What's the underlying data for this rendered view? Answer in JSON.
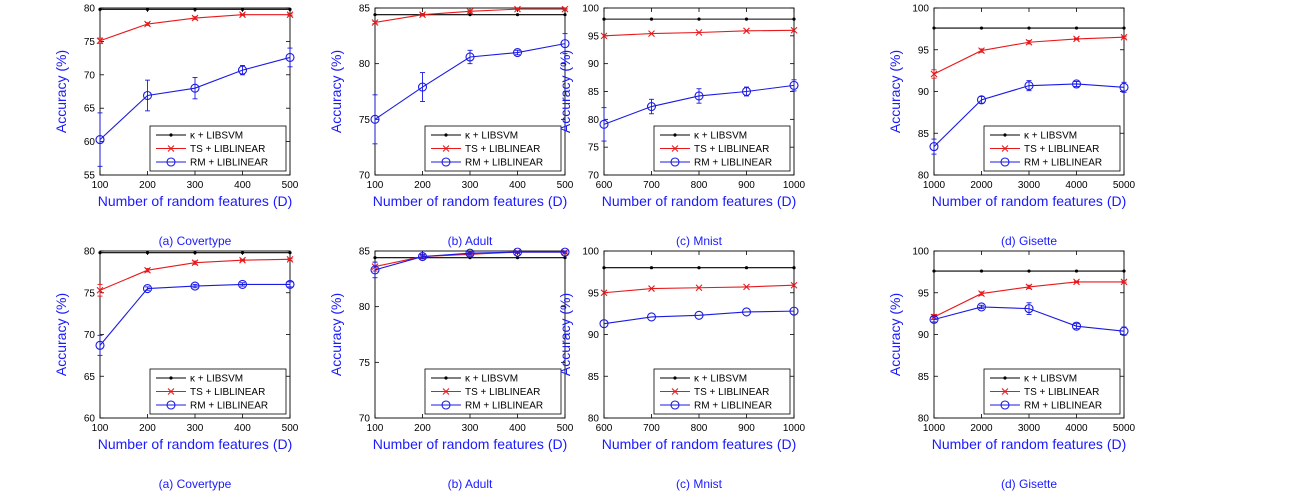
{
  "colors": {
    "axis_label": "#1a1aff",
    "caption": "#1a1aff",
    "kernel": "#000000",
    "ts": "#e8191c",
    "rm": "#1a1ae6"
  },
  "chart_data": [
    {
      "type": "line",
      "caption": "(a) Covertype",
      "xlabel": "Number of random features (D)",
      "ylabel": "Accuracy (%)",
      "xlim": [
        100,
        500
      ],
      "ylim": [
        55,
        80
      ],
      "xticks": [
        100,
        200,
        300,
        400,
        500
      ],
      "yticks": [
        55,
        60,
        65,
        70,
        75,
        80
      ],
      "x": [
        100,
        200,
        300,
        400,
        500
      ],
      "legend": "bottom-right",
      "grid": false,
      "series": [
        {
          "name": "κ + LIBSVM",
          "marker": "dot",
          "values": [
            79.8,
            79.8,
            79.8,
            79.8,
            79.8
          ]
        },
        {
          "name": "TS + LIBLINEAR",
          "marker": "x",
          "values": [
            75.1,
            77.6,
            78.5,
            79.0,
            79.0
          ],
          "errors": [
            0.4,
            0.2,
            0.2,
            0.1,
            0.1
          ]
        },
        {
          "name": "RM + LIBLINEAR",
          "marker": "circle",
          "values": [
            60.3,
            66.9,
            68.0,
            70.7,
            72.6
          ],
          "errors": [
            4.0,
            2.3,
            1.6,
            0.7,
            1.4
          ]
        }
      ]
    },
    {
      "type": "line",
      "caption": "(b) Adult",
      "xlabel": "Number of random features (D)",
      "ylabel": "Accuracy (%)",
      "xlim": [
        100,
        500
      ],
      "ylim": [
        70,
        85
      ],
      "xticks": [
        100,
        200,
        300,
        400,
        500
      ],
      "yticks": [
        70,
        75,
        80,
        85
      ],
      "x": [
        100,
        200,
        300,
        400,
        500
      ],
      "legend": "bottom-right",
      "grid": false,
      "series": [
        {
          "name": "κ + LIBSVM",
          "marker": "dot",
          "values": [
            84.4,
            84.4,
            84.4,
            84.4,
            84.4
          ]
        },
        {
          "name": "TS + LIBLINEAR",
          "marker": "x",
          "values": [
            83.7,
            84.4,
            84.7,
            84.9,
            84.9
          ],
          "errors": [
            0.1,
            0.1,
            0.1,
            0.05,
            0.05
          ]
        },
        {
          "name": "RM + LIBLINEAR",
          "marker": "circle",
          "values": [
            75.0,
            77.9,
            80.6,
            81.0,
            81.8
          ],
          "errors": [
            2.2,
            1.3,
            0.6,
            0.2,
            0.9
          ]
        }
      ]
    },
    {
      "type": "line",
      "caption": "(c) Mnist",
      "xlabel": "Number of random features (D)",
      "ylabel": "Accuracy (%)",
      "xlim": [
        600,
        1000
      ],
      "ylim": [
        70,
        100
      ],
      "xticks": [
        600,
        700,
        800,
        900,
        1000
      ],
      "yticks": [
        70,
        75,
        80,
        85,
        90,
        95,
        100
      ],
      "x": [
        600,
        700,
        800,
        900,
        1000
      ],
      "legend": "bottom-right",
      "grid": false,
      "series": [
        {
          "name": "κ + LIBSVM",
          "marker": "dot",
          "values": [
            98.0,
            98.0,
            98.0,
            98.0,
            98.0
          ]
        },
        {
          "name": "TS + LIBLINEAR",
          "marker": "x",
          "values": [
            95.0,
            95.4,
            95.6,
            95.9,
            96.0
          ]
        },
        {
          "name": "RM + LIBLINEAR",
          "marker": "circle",
          "values": [
            79.1,
            82.3,
            84.2,
            85.0,
            86.1
          ],
          "errors": [
            3.0,
            1.3,
            1.3,
            0.8,
            1.0
          ]
        }
      ]
    },
    {
      "type": "line",
      "caption": "(d) Gisette",
      "xlabel": "Number of random features (D)",
      "ylabel": "Accuracy (%)",
      "xlim": [
        1000,
        5000
      ],
      "ylim": [
        80,
        100
      ],
      "xticks": [
        1000,
        2000,
        3000,
        4000,
        5000
      ],
      "yticks": [
        80,
        85,
        90,
        95,
        100
      ],
      "x": [
        1000,
        2000,
        3000,
        4000,
        5000
      ],
      "legend": "bottom-right",
      "grid": false,
      "series": [
        {
          "name": "κ + LIBSVM",
          "marker": "dot",
          "values": [
            97.6,
            97.6,
            97.6,
            97.6,
            97.6
          ]
        },
        {
          "name": "TS + LIBLINEAR",
          "marker": "x",
          "values": [
            92.1,
            94.9,
            95.9,
            96.3,
            96.5
          ],
          "errors": [
            0.5,
            0.2,
            0.2,
            0.1,
            0.1
          ]
        },
        {
          "name": "RM + LIBLINEAR",
          "marker": "circle",
          "values": [
            83.4,
            89.0,
            90.7,
            90.9,
            90.5
          ],
          "errors": [
            0.9,
            0.4,
            0.6,
            0.3,
            0.6
          ]
        }
      ]
    },
    {
      "type": "line",
      "caption": "(a) Covertype",
      "xlabel": "Number of random features (D)",
      "ylabel": "Accuracy (%)",
      "xlim": [
        100,
        500
      ],
      "ylim": [
        60,
        80
      ],
      "xticks": [
        100,
        200,
        300,
        400,
        500
      ],
      "yticks": [
        60,
        65,
        70,
        75,
        80
      ],
      "x": [
        100,
        200,
        300,
        400,
        500
      ],
      "legend": "bottom-right",
      "grid": false,
      "series": [
        {
          "name": "κ + LIBSVM",
          "marker": "dot",
          "values": [
            79.8,
            79.8,
            79.8,
            79.8,
            79.8
          ]
        },
        {
          "name": "TS + LIBLINEAR",
          "marker": "x",
          "values": [
            75.3,
            77.7,
            78.6,
            78.9,
            79.0
          ],
          "errors": [
            0.7,
            0.2,
            0.2,
            0.1,
            0.1
          ]
        },
        {
          "name": "RM + LIBLINEAR",
          "marker": "circle",
          "values": [
            68.7,
            75.5,
            75.8,
            76.0,
            76.0
          ],
          "errors": [
            1.2,
            0.2,
            0.2,
            0.2,
            0.3
          ]
        }
      ]
    },
    {
      "type": "line",
      "caption": "(b) Adult",
      "xlabel": "Number of random features (D)",
      "ylabel": "Accuracy (%)",
      "xlim": [
        100,
        500
      ],
      "ylim": [
        70,
        85
      ],
      "xticks": [
        100,
        200,
        300,
        400,
        500
      ],
      "yticks": [
        70,
        75,
        80,
        85
      ],
      "x": [
        100,
        200,
        300,
        400,
        500
      ],
      "legend": "bottom-right",
      "grid": false,
      "series": [
        {
          "name": "κ + LIBSVM",
          "marker": "dot",
          "values": [
            84.4,
            84.4,
            84.4,
            84.4,
            84.4
          ]
        },
        {
          "name": "TS + LIBLINEAR",
          "marker": "x",
          "values": [
            83.6,
            84.5,
            84.7,
            84.9,
            84.9
          ],
          "errors": [
            0.4,
            0.1,
            0.1,
            0.05,
            0.05
          ]
        },
        {
          "name": "RM + LIBLINEAR",
          "marker": "circle",
          "values": [
            83.3,
            84.5,
            84.8,
            84.9,
            84.9
          ],
          "errors": [
            0.7,
            0.2,
            0.1,
            0.1,
            0.1
          ]
        }
      ]
    },
    {
      "type": "line",
      "caption": "(c) Mnist",
      "xlabel": "Number of random features (D)",
      "ylabel": "Accuracy (%)",
      "xlim": [
        600,
        1000
      ],
      "ylim": [
        80,
        100
      ],
      "xticks": [
        600,
        700,
        800,
        900,
        1000
      ],
      "yticks": [
        80,
        85,
        90,
        95,
        100
      ],
      "x": [
        600,
        700,
        800,
        900,
        1000
      ],
      "legend": "bottom-right",
      "grid": false,
      "series": [
        {
          "name": "κ + LIBSVM",
          "marker": "dot",
          "values": [
            98.0,
            98.0,
            98.0,
            98.0,
            98.0
          ]
        },
        {
          "name": "TS + LIBLINEAR",
          "marker": "x",
          "values": [
            95.0,
            95.5,
            95.6,
            95.7,
            95.9
          ]
        },
        {
          "name": "RM + LIBLINEAR",
          "marker": "circle",
          "values": [
            91.3,
            92.1,
            92.3,
            92.7,
            92.8
          ]
        }
      ]
    },
    {
      "type": "line",
      "caption": "(d) Gisette",
      "xlabel": "Number of random features (D)",
      "ylabel": "Accuracy (%)",
      "xlim": [
        1000,
        5000
      ],
      "ylim": [
        80,
        100
      ],
      "xticks": [
        1000,
        2000,
        3000,
        4000,
        5000
      ],
      "yticks": [
        80,
        85,
        90,
        95,
        100
      ],
      "x": [
        1000,
        2000,
        3000,
        4000,
        5000
      ],
      "legend": "bottom-right",
      "grid": false,
      "series": [
        {
          "name": "κ + LIBSVM",
          "marker": "dot",
          "values": [
            97.6,
            97.6,
            97.6,
            97.6,
            97.6
          ]
        },
        {
          "name": "TS + LIBLINEAR",
          "marker": "x",
          "values": [
            92.1,
            94.9,
            95.7,
            96.3,
            96.3
          ],
          "errors": [
            0.3,
            0.2,
            0.2,
            0.1,
            0.1
          ]
        },
        {
          "name": "RM + LIBLINEAR",
          "marker": "circle",
          "values": [
            91.8,
            93.3,
            93.1,
            91.0,
            90.4
          ],
          "errors": [
            0.3,
            0.2,
            0.7,
            0.3,
            0.5
          ]
        }
      ]
    }
  ]
}
